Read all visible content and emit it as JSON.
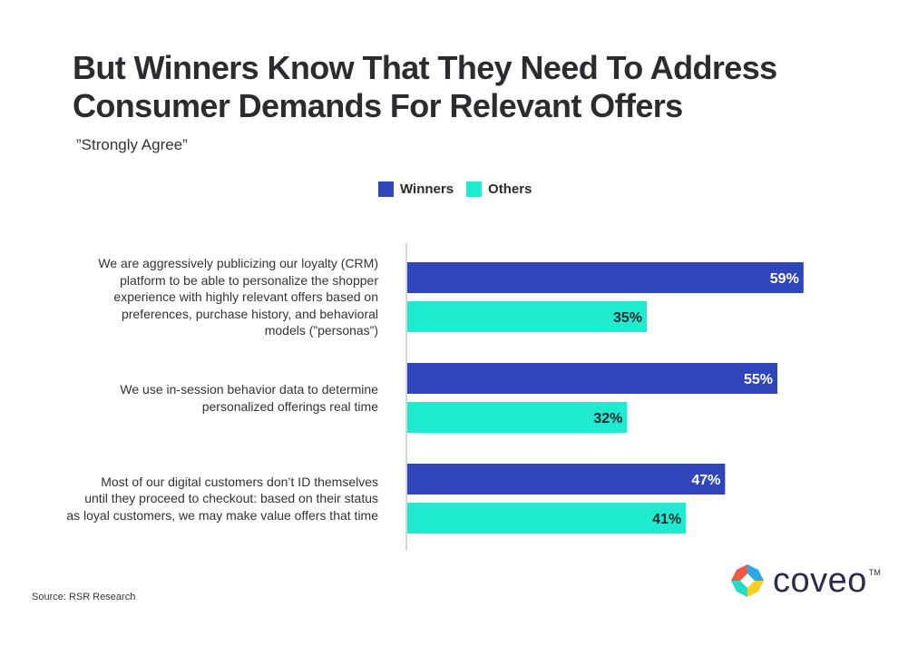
{
  "header": {
    "title": "But Winners Know That They Need To Address Consumer Demands For Relevant Offers",
    "subtitle": "”Strongly Agree”"
  },
  "footer": {
    "source": "Source: RSR Research",
    "logo_text": "coveo",
    "logo_tm": "TM"
  },
  "colors": {
    "winners": "#2e46b9",
    "others": "#1eebd0",
    "axis": "#c8c8c8"
  },
  "chart_data": {
    "type": "bar",
    "orientation": "horizontal",
    "title": "But Winners Know That They Need To Address Consumer Demands For Relevant Offers",
    "subtitle": "”Strongly Agree”",
    "xlabel": "",
    "ylabel": "",
    "unit": "%",
    "legend": {
      "placement": "top-center",
      "entries": [
        "Winners",
        "Others"
      ]
    },
    "grid": false,
    "categories": [
      "We are aggressively publicizing our loyalty (CRM) platform to be able to personalize the shopper experience with highly relevant offers based on preferences, purchase history, and behavioral models (”personas”)",
      "We use in-session behavior data to determine personalized offerings real time",
      "Most of our digital customers don’t ID themselves until they proceed to checkout: based on their status as loyal customers, we may make value offers that time"
    ],
    "category_lines": [
      [
        "We are aggressively publicizing our loyalty (CRM)",
        "platform to be able to personalize the shopper",
        "experience with highly relevant offers based on",
        "preferences, purchase history, and behavioral",
        "models (”personas”)"
      ],
      [
        "We use in-session behavior data to determine",
        "personalized offerings real time"
      ],
      [
        "Most of our digital customers don’t ID themselves",
        "until they proceed to checkout: based on their status",
        "as loyal customers, we may make value offers that time"
      ]
    ],
    "series": [
      {
        "name": "Winners",
        "values": [
          59,
          55,
          47
        ],
        "labels": [
          "59%",
          "55%",
          "47%"
        ]
      },
      {
        "name": "Others",
        "values": [
          35,
          32,
          41
        ],
        "labels": [
          "35%",
          "32%",
          "41%"
        ]
      }
    ],
    "xlim": [
      0,
      62
    ]
  }
}
